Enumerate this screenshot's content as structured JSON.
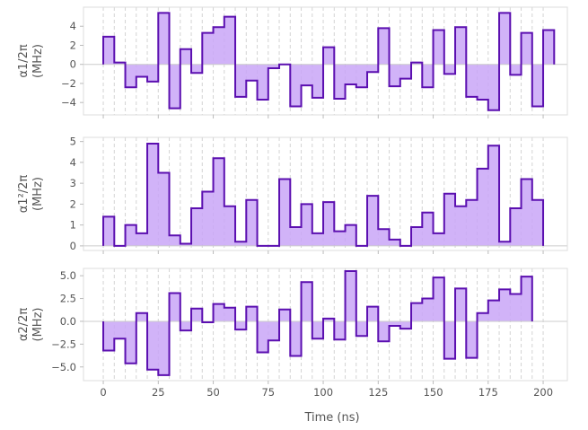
{
  "chart_data": [
    {
      "type": "area",
      "ylabel_line1": "α1/2π",
      "ylabel_line2": "(MHz)",
      "ylim": [
        -5.3,
        6.0
      ],
      "yticks": [
        -4,
        -2,
        0,
        2,
        4
      ],
      "ytick_labels": [
        "−4",
        "−2",
        "0",
        "2",
        "4"
      ],
      "step_ns": 5,
      "values": [
        2.9,
        0.2,
        -2.4,
        -1.3,
        -1.8,
        5.4,
        -4.6,
        1.6,
        -0.9,
        3.3,
        3.9,
        5.0,
        -3.4,
        -1.7,
        -3.7,
        -0.4,
        0.0,
        -4.4,
        -2.2,
        -3.5,
        1.8,
        -3.6,
        -2.1,
        -2.4,
        -0.8,
        3.8,
        -2.3,
        -1.5,
        0.2,
        -2.4,
        3.6,
        -1.0,
        3.9,
        -3.4,
        -3.7,
        -4.8,
        5.4,
        -1.1,
        3.3,
        -4.4,
        3.6
      ]
    },
    {
      "type": "area",
      "ylabel_line1": "α1²/2π",
      "ylabel_line2": "(MHz)",
      "ylim": [
        -0.22,
        5.2
      ],
      "yticks": [
        0,
        1,
        2,
        3,
        4,
        5
      ],
      "ytick_labels": [
        "0",
        "1",
        "2",
        "3",
        "4",
        "5"
      ],
      "step_ns": 5,
      "values": [
        1.4,
        0.0,
        1.0,
        0.6,
        4.9,
        3.5,
        0.5,
        0.1,
        1.8,
        2.6,
        4.2,
        1.9,
        0.2,
        2.2,
        0.0,
        0.0,
        3.2,
        0.9,
        2.0,
        0.6,
        2.1,
        0.7,
        1.0,
        0.0,
        2.4,
        0.8,
        0.3,
        0.0,
        0.9,
        1.6,
        0.6,
        2.5,
        1.9,
        2.2,
        3.7,
        4.8,
        0.2,
        1.8,
        3.2,
        2.2
      ]
    },
    {
      "type": "area",
      "ylabel_line1": "α2/2π",
      "ylabel_line2": "(MHz)",
      "ylim": [
        -6.5,
        5.8
      ],
      "yticks": [
        -5.0,
        -2.5,
        0.0,
        2.5,
        5.0
      ],
      "ytick_labels": [
        "−5.0",
        "−2.5",
        "0.0",
        "2.5",
        "5.0"
      ],
      "step_ns": 5,
      "values": [
        -3.2,
        -1.9,
        -4.6,
        0.9,
        -5.3,
        -5.9,
        3.1,
        -1.0,
        1.4,
        -0.1,
        1.9,
        1.5,
        -0.9,
        1.6,
        -3.4,
        -2.1,
        1.3,
        -3.8,
        4.3,
        -1.9,
        0.3,
        -2.0,
        5.5,
        -1.6,
        1.6,
        -2.2,
        -0.5,
        -0.8,
        2.0,
        2.5,
        4.8,
        -4.1,
        3.6,
        -4.0,
        0.9,
        2.3,
        3.5,
        3.0,
        4.9
      ]
    }
  ],
  "xaxis": {
    "label": "Time (ns)",
    "xlim": [
      -9,
      211
    ],
    "ticks": [
      0,
      25,
      50,
      75,
      100,
      125,
      150,
      175,
      200
    ],
    "tick_labels": [
      "0",
      "25",
      "50",
      "75",
      "100",
      "125",
      "150",
      "175",
      "200"
    ]
  },
  "colors": {
    "line": "#5b0fb0",
    "fill": "#c9a6f7",
    "zero_line": "#cccccc",
    "grid_dashed": "#d3d3d3",
    "spine": "#dddddd",
    "text": "#555555"
  },
  "grid": {
    "vertical_dashed_every_ns": 5,
    "horizontal": false
  }
}
